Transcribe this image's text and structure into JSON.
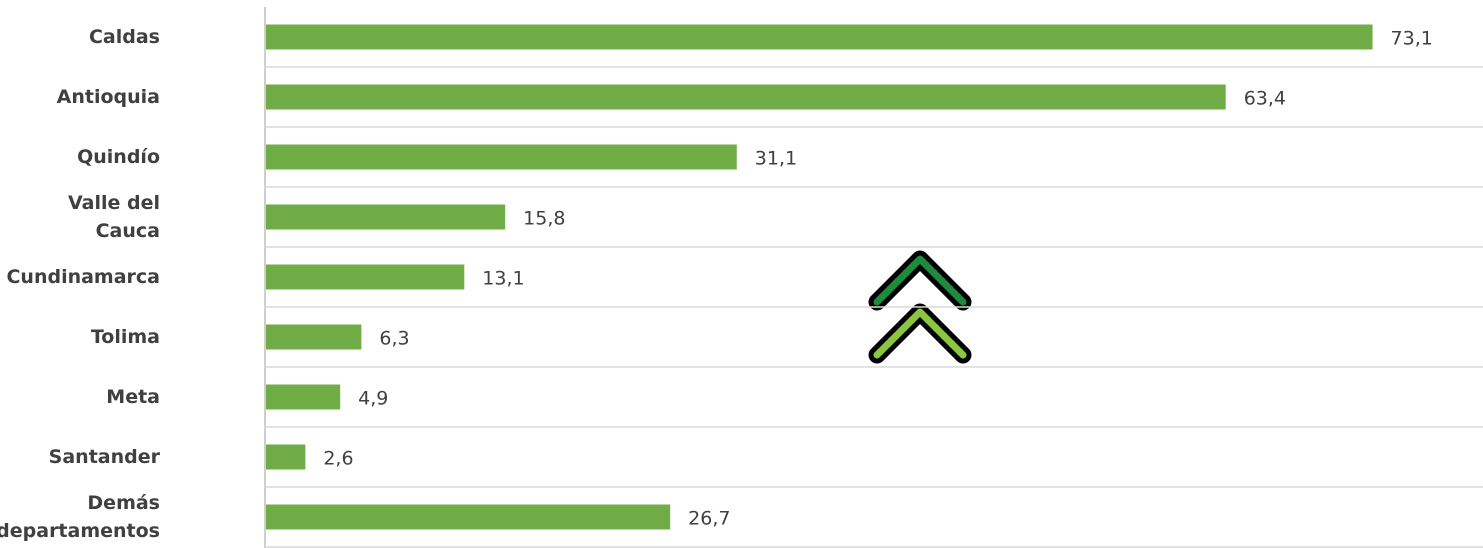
{
  "chart_data": {
    "type": "bar",
    "orientation": "horizontal",
    "categories": [
      "Caldas",
      "Antioquia",
      "Quindío",
      "Valle del Cauca",
      "Cundinamarca",
      "Tolima",
      "Meta",
      "Santander",
      "Demás departamentos"
    ],
    "values": [
      73.1,
      63.4,
      31.1,
      15.8,
      13.1,
      6.3,
      4.9,
      2.6,
      26.7
    ],
    "value_labels": [
      "73,1",
      "63,4",
      "31,1",
      "15,8",
      "13,1",
      "6,3",
      "4,9",
      "2,6",
      "26,7"
    ],
    "color": "#70ad47",
    "xlim": [
      0,
      80
    ]
  }
}
